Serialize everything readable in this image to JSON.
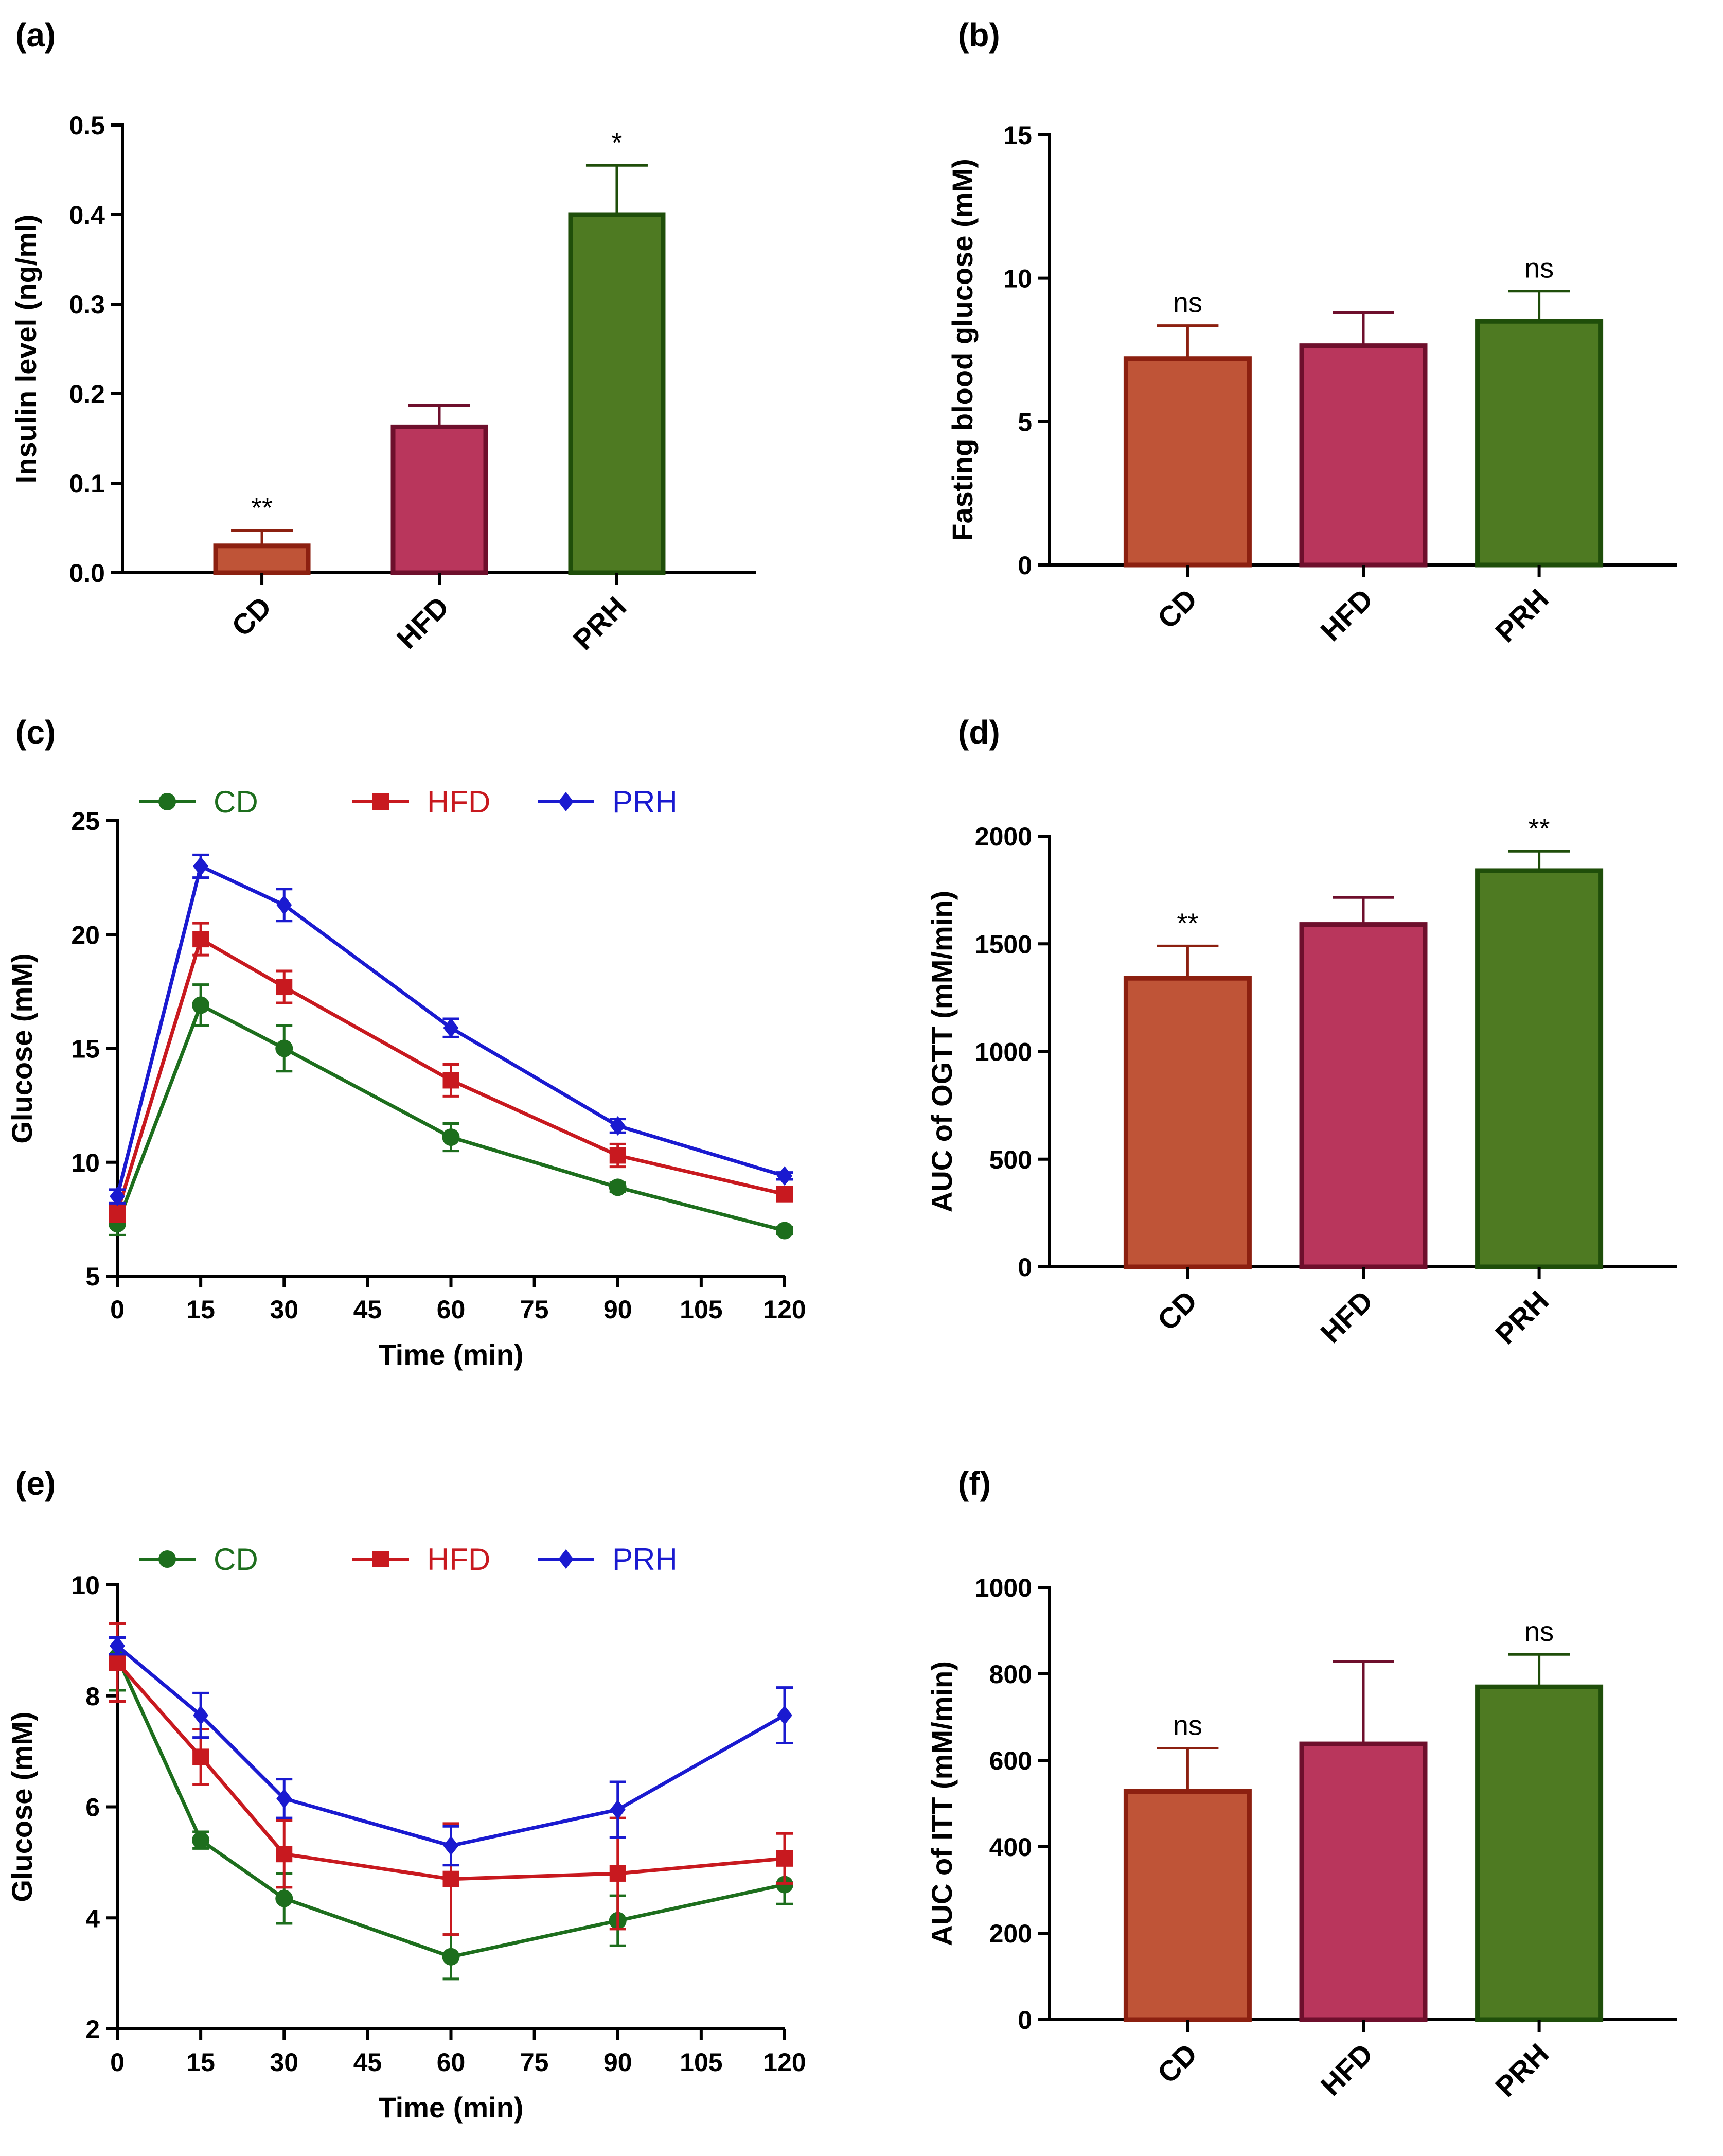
{
  "colors": {
    "CD_fill": "#bf5437",
    "CD_edge": "#8c2010",
    "HFD_fill": "#b9365c",
    "HFD_edge": "#6e0f2c",
    "PRH_fill": "#4e7a22",
    "PRH_edge": "#1f4e0a",
    "CD_line": "#1d6e1d",
    "HFD_line": "#c8191f",
    "PRH_line": "#1a1ad0"
  },
  "chart_data": [
    {
      "id": "a",
      "panel_label": "(a)",
      "type": "bar",
      "title": "",
      "xlabel": "",
      "ylabel": "Insulin level (ng/ml)",
      "categories": [
        "CD",
        "HFD",
        "PRH"
      ],
      "values": [
        0.03,
        0.163,
        0.4
      ],
      "errors": [
        0.017,
        0.024,
        0.055
      ],
      "annotations": [
        "**",
        "",
        "*"
      ],
      "ylim": [
        0,
        0.5
      ],
      "yticks": [
        "0.0",
        "0.1",
        "0.2",
        "0.3",
        "0.4",
        "0.5"
      ]
    },
    {
      "id": "b",
      "panel_label": "(b)",
      "type": "bar",
      "title": "",
      "xlabel": "",
      "ylabel": "Fasting blood glucose (mM)",
      "categories": [
        "CD",
        "HFD",
        "PRH"
      ],
      "values": [
        7.2,
        7.65,
        8.5
      ],
      "errors": [
        1.15,
        1.15,
        1.05
      ],
      "annotations": [
        "ns",
        "",
        "ns"
      ],
      "ylim": [
        0,
        15
      ],
      "yticks": [
        "0",
        "5",
        "10",
        "15"
      ]
    },
    {
      "id": "c",
      "panel_label": "(c)",
      "type": "line",
      "title": "",
      "xlabel": "Time (min)",
      "ylabel": "Glucose (mM)",
      "x": [
        0,
        15,
        30,
        60,
        90,
        120
      ],
      "xlim": [
        0,
        120
      ],
      "xticks": [
        "0",
        "15",
        "30",
        "45",
        "60",
        "75",
        "90",
        "105",
        "120"
      ],
      "ylim": [
        5,
        25
      ],
      "yticks": [
        "5",
        "10",
        "15",
        "20",
        "25"
      ],
      "legend": [
        "CD",
        "HFD",
        "PRH"
      ],
      "series": [
        {
          "name": "CD",
          "values": [
            7.3,
            16.9,
            15.0,
            11.1,
            8.9,
            7.0
          ],
          "errors": [
            0.5,
            0.9,
            1.0,
            0.6,
            0.2,
            0.15
          ]
        },
        {
          "name": "HFD",
          "values": [
            7.8,
            19.8,
            17.7,
            13.6,
            10.3,
            8.6
          ],
          "errors": [
            0.4,
            0.7,
            0.7,
            0.7,
            0.5,
            0.2
          ]
        },
        {
          "name": "PRH",
          "values": [
            8.5,
            23.0,
            21.3,
            15.9,
            11.6,
            9.4
          ],
          "errors": [
            0.3,
            0.5,
            0.7,
            0.4,
            0.3,
            0.15
          ]
        }
      ]
    },
    {
      "id": "d",
      "panel_label": "(d)",
      "type": "bar",
      "title": "",
      "xlabel": "",
      "ylabel": "AUC of OGTT (mM/min)",
      "categories": [
        "CD",
        "HFD",
        "PRH"
      ],
      "values": [
        1340,
        1590,
        1840
      ],
      "errors": [
        150,
        125,
        90
      ],
      "annotations": [
        "**",
        "",
        "**"
      ],
      "ylim": [
        0,
        2000
      ],
      "yticks": [
        "0",
        "500",
        "1000",
        "1500",
        "2000"
      ]
    },
    {
      "id": "e",
      "panel_label": "(e)",
      "type": "line",
      "title": "",
      "xlabel": "Time (min)",
      "ylabel": "Glucose (mM)",
      "x": [
        0,
        15,
        30,
        60,
        90,
        120
      ],
      "xlim": [
        0,
        120
      ],
      "xticks": [
        "0",
        "15",
        "30",
        "45",
        "60",
        "75",
        "90",
        "105",
        "120"
      ],
      "ylim": [
        2,
        10
      ],
      "yticks": [
        "2",
        "4",
        "6",
        "8",
        "10"
      ],
      "legend": [
        "CD",
        "HFD",
        "PRH"
      ],
      "series": [
        {
          "name": "CD",
          "values": [
            8.7,
            5.4,
            4.35,
            3.3,
            3.95,
            4.6
          ],
          "errors": [
            0.6,
            0.15,
            0.45,
            0.4,
            0.45,
            0.35
          ]
        },
        {
          "name": "HFD",
          "values": [
            8.6,
            6.9,
            5.15,
            4.7,
            4.8,
            5.07
          ],
          "errors": [
            0.7,
            0.5,
            0.6,
            1.0,
            1.0,
            0.45
          ]
        },
        {
          "name": "PRH",
          "values": [
            8.9,
            7.65,
            6.15,
            5.3,
            5.95,
            7.65
          ],
          "errors": [
            0.15,
            0.4,
            0.35,
            0.35,
            0.5,
            0.5
          ]
        }
      ]
    },
    {
      "id": "f",
      "panel_label": "(f)",
      "type": "bar",
      "title": "",
      "xlabel": "",
      "ylabel": "AUC of ITT (mM/min)",
      "categories": [
        "CD",
        "HFD",
        "PRH"
      ],
      "values": [
        528,
        638,
        770
      ],
      "errors": [
        100,
        190,
        75
      ],
      "annotations": [
        "ns",
        "",
        "ns"
      ],
      "ylim": [
        0,
        1000
      ],
      "yticks": [
        "0",
        "200",
        "400",
        "600",
        "800",
        "1000"
      ]
    }
  ]
}
